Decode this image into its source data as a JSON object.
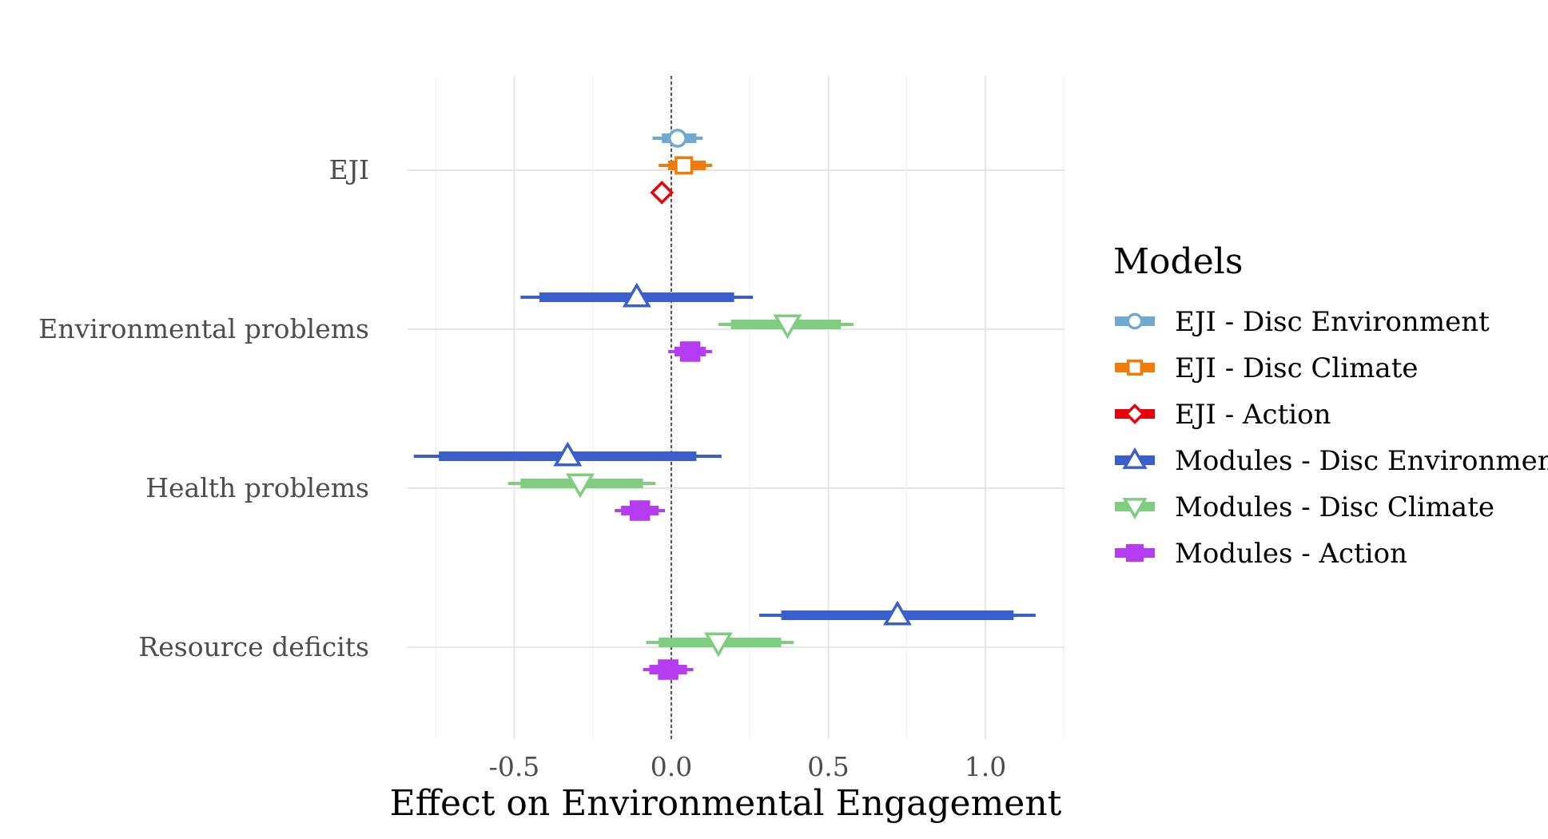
{
  "chart_data": {
    "type": "coefficient-plot",
    "title": "",
    "xlabel": "Effect on Environmental Engagement",
    "ylabel": "",
    "xlim": [
      -0.84,
      1.26
    ],
    "x_ticks": [
      -0.5,
      0.0,
      0.5,
      1.0
    ],
    "x_tick_labels": [
      "-0.5",
      "0.0",
      "0.5",
      "1.0"
    ],
    "reference_line": 0.0,
    "categories": [
      "EJI",
      "Environmental problems",
      "Health problems",
      "Resource deficits"
    ],
    "legend_title": "Models",
    "legend_position": "right",
    "series": [
      {
        "name": "EJI - Disc Environment",
        "color": "#6fa8d0",
        "shape": "circle",
        "filled": false,
        "points": [
          {
            "category": "EJI",
            "estimate": 0.02,
            "ci90": [
              -0.03,
              0.08
            ],
            "ci95": [
              -0.06,
              0.1
            ]
          }
        ]
      },
      {
        "name": "EJI - Disc Climate",
        "color": "#f07a0a",
        "shape": "square",
        "filled": false,
        "points": [
          {
            "category": "EJI",
            "estimate": 0.04,
            "ci90": [
              -0.01,
              0.11
            ],
            "ci95": [
              -0.04,
              0.13
            ]
          }
        ]
      },
      {
        "name": "EJI - Action",
        "color": "#e8000b",
        "shape": "diamond",
        "filled": false,
        "points": [
          {
            "category": "EJI",
            "estimate": -0.03,
            "ci90": [
              -0.03,
              -0.02
            ],
            "ci95": [
              -0.03,
              -0.02
            ]
          }
        ]
      },
      {
        "name": "Modules - Disc Environment",
        "color": "#3a5fcd",
        "shape": "triangle-up",
        "filled": false,
        "points": [
          {
            "category": "Environmental problems",
            "estimate": -0.11,
            "ci90": [
              -0.42,
              0.2
            ],
            "ci95": [
              -0.48,
              0.26
            ]
          },
          {
            "category": "Health problems",
            "estimate": -0.33,
            "ci90": [
              -0.74,
              0.08
            ],
            "ci95": [
              -0.82,
              0.16
            ]
          },
          {
            "category": "Resource deficits",
            "estimate": 0.72,
            "ci90": [
              0.35,
              1.09
            ],
            "ci95": [
              0.28,
              1.16
            ]
          }
        ]
      },
      {
        "name": "Modules - Disc Climate",
        "color": "#7fcd80",
        "shape": "triangle-down",
        "filled": false,
        "points": [
          {
            "category": "Environmental problems",
            "estimate": 0.37,
            "ci90": [
              0.19,
              0.54
            ],
            "ci95": [
              0.15,
              0.58
            ]
          },
          {
            "category": "Health problems",
            "estimate": -0.29,
            "ci90": [
              -0.48,
              -0.09
            ],
            "ci95": [
              -0.52,
              -0.05
            ]
          },
          {
            "category": "Resource deficits",
            "estimate": 0.15,
            "ci90": [
              -0.04,
              0.35
            ],
            "ci95": [
              -0.08,
              0.39
            ]
          }
        ]
      },
      {
        "name": "Modules - Action",
        "color": "#b53cf0",
        "shape": "square",
        "filled": true,
        "points": [
          {
            "category": "Environmental problems",
            "estimate": 0.06,
            "ci90": [
              0.01,
              0.11
            ],
            "ci95": [
              -0.01,
              0.13
            ]
          },
          {
            "category": "Health problems",
            "estimate": -0.1,
            "ci90": [
              -0.16,
              -0.04
            ],
            "ci95": [
              -0.18,
              -0.02
            ]
          },
          {
            "category": "Resource deficits",
            "estimate": -0.01,
            "ci90": [
              -0.07,
              0.05
            ],
            "ci95": [
              -0.09,
              0.07
            ]
          }
        ]
      }
    ]
  }
}
